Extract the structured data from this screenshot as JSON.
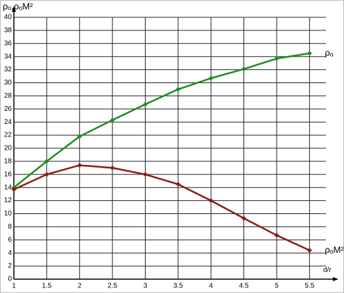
{
  "chart_data": {
    "type": "line",
    "y_label": "ρₒ,ρₒM²",
    "x_label": "d/r",
    "x": [
      1,
      1.5,
      2,
      2.5,
      3,
      3.5,
      4,
      4.5,
      5,
      5.5
    ],
    "series": [
      {
        "name": "ρₒ",
        "color": "#1e8c1e",
        "values": [
          14,
          18,
          21.8,
          24.3,
          26.7,
          29,
          30.7,
          32.1,
          33.7,
          34.5
        ]
      },
      {
        "name": "ρₒM²",
        "color": "#8b1c1c",
        "values": [
          13.7,
          16,
          17.4,
          17,
          16,
          14.5,
          12,
          9.3,
          6.7,
          4.4
        ]
      }
    ],
    "xlim": [
      1,
      5.75
    ],
    "ylim": [
      0,
      40
    ],
    "xticks": [
      1,
      1.5,
      2,
      2.5,
      3,
      3.5,
      4,
      4.5,
      5,
      5.5
    ],
    "yticks": [
      0,
      2,
      4,
      6,
      8,
      10,
      12,
      14,
      16,
      18,
      20,
      22,
      24,
      26,
      28,
      30,
      32,
      34,
      36,
      38,
      40
    ],
    "grid": true
  }
}
